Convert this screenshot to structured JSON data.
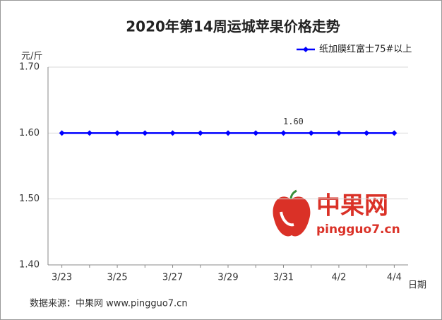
{
  "chart_data": {
    "type": "line",
    "title": "2020年第14周运城苹果价格走势",
    "y_label": "元/斤",
    "x_label": "日期",
    "source": "数据来源：中果网 www.pingguo7.cn",
    "watermark": {
      "name": "中果网",
      "site": "pingguo7.cn"
    },
    "categories": [
      "3/23",
      null,
      "3/25",
      null,
      "3/27",
      null,
      "3/29",
      null,
      "3/31",
      null,
      "4/2",
      null,
      "4/4"
    ],
    "series": [
      {
        "name": "纸加膜红富士75#以上",
        "color": "#0000ff",
        "values": [
          1.6,
          1.6,
          1.6,
          1.6,
          1.6,
          1.6,
          1.6,
          1.6,
          1.6,
          1.6,
          1.6,
          1.6,
          1.6
        ],
        "value_labels": [
          null,
          null,
          null,
          null,
          null,
          null,
          null,
          null,
          "1.60",
          null,
          null,
          null,
          null
        ]
      }
    ],
    "ylim": [
      1.4,
      1.7
    ],
    "yticks": [
      {
        "value": 1.4,
        "label": "1.40"
      },
      {
        "value": 1.5,
        "label": "1.50"
      },
      {
        "value": 1.6,
        "label": "1.60"
      },
      {
        "value": 1.7,
        "label": "1.70"
      }
    ],
    "grid": true,
    "legend": "top-right"
  }
}
